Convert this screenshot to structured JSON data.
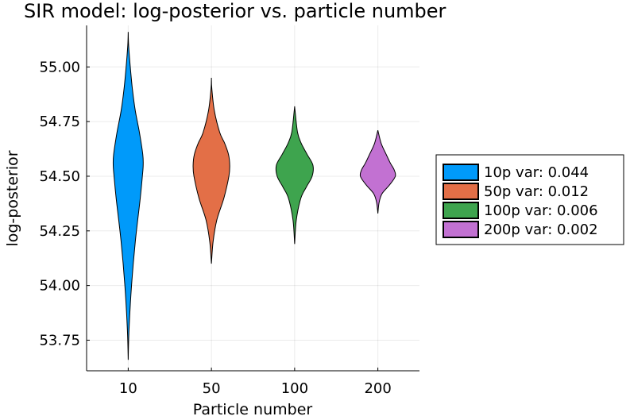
{
  "chart_data": {
    "type": "violin",
    "title": "SIR model: log-posterior vs. particle number",
    "xlabel": "Particle number",
    "ylabel": "log-posterior",
    "ylim": [
      53.61,
      55.19
    ],
    "yticks": [
      "53.75",
      "54.00",
      "54.25",
      "54.50",
      "54.75",
      "55.00"
    ],
    "ytick_values": [
      53.75,
      54.0,
      54.25,
      54.5,
      54.75,
      55.0
    ],
    "categories": [
      "10",
      "50",
      "100",
      "200"
    ],
    "grid": true,
    "legend_position": "right",
    "series": [
      {
        "name": "10p var: 0.044",
        "category": "10",
        "color": "#009AFA",
        "min": 53.66,
        "max": 55.16,
        "profile": [
          [
            53.66,
            0
          ],
          [
            53.8,
            0.02
          ],
          [
            54.0,
            0.08
          ],
          [
            54.2,
            0.17
          ],
          [
            54.4,
            0.29
          ],
          [
            54.5,
            0.34
          ],
          [
            54.55,
            0.36
          ],
          [
            54.6,
            0.35
          ],
          [
            54.7,
            0.27
          ],
          [
            54.8,
            0.17
          ],
          [
            54.9,
            0.1
          ],
          [
            55.0,
            0.05
          ],
          [
            55.1,
            0.01
          ],
          [
            55.16,
            0
          ]
        ]
      },
      {
        "name": "50p var: 0.012",
        "category": "50",
        "color": "#E36F47",
        "min": 54.1,
        "max": 54.95,
        "profile": [
          [
            54.1,
            0
          ],
          [
            54.2,
            0.04
          ],
          [
            54.3,
            0.13
          ],
          [
            54.4,
            0.3
          ],
          [
            54.5,
            0.42
          ],
          [
            54.55,
            0.44
          ],
          [
            54.6,
            0.41
          ],
          [
            54.65,
            0.32
          ],
          [
            54.7,
            0.2
          ],
          [
            54.8,
            0.07
          ],
          [
            54.9,
            0.01
          ],
          [
            54.95,
            0
          ]
        ]
      },
      {
        "name": "100p var: 0.006",
        "category": "100",
        "color": "#3EA44E",
        "min": 54.19,
        "max": 54.82,
        "profile": [
          [
            54.19,
            0
          ],
          [
            54.3,
            0.04
          ],
          [
            54.4,
            0.15
          ],
          [
            54.45,
            0.28
          ],
          [
            54.5,
            0.42
          ],
          [
            54.55,
            0.44
          ],
          [
            54.6,
            0.3
          ],
          [
            54.65,
            0.16
          ],
          [
            54.7,
            0.07
          ],
          [
            54.8,
            0.01
          ],
          [
            54.82,
            0
          ]
        ]
      },
      {
        "name": "200p var: 0.002",
        "category": "200",
        "color": "#C271D2",
        "min": 54.33,
        "max": 54.71,
        "profile": [
          [
            54.33,
            0
          ],
          [
            54.38,
            0.03
          ],
          [
            54.42,
            0.1
          ],
          [
            54.46,
            0.28
          ],
          [
            54.5,
            0.42
          ],
          [
            54.53,
            0.39
          ],
          [
            54.56,
            0.3
          ],
          [
            54.6,
            0.2
          ],
          [
            54.65,
            0.08
          ],
          [
            54.71,
            0
          ]
        ]
      }
    ]
  }
}
